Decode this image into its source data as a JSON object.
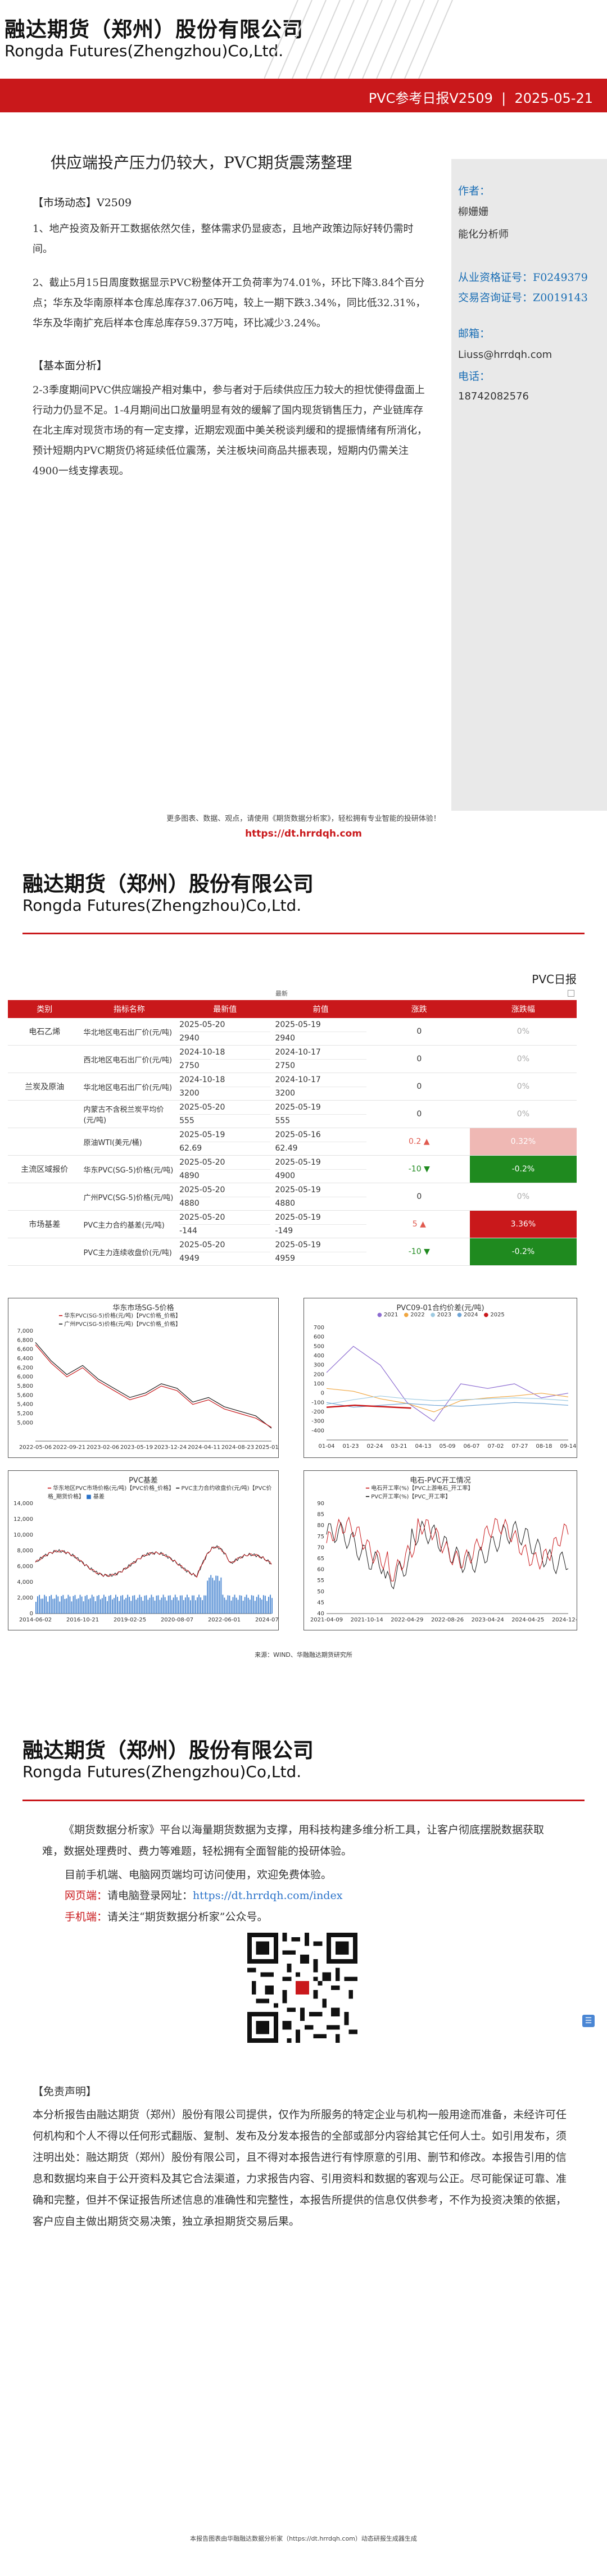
{
  "header": {
    "company_cn": "融达期货（郑州）股份有限公司",
    "company_en": "Rongda Futures(Zhengzhou)Co,Ltd.",
    "report_name": "PVC参考日报V2509",
    "separator": "|",
    "report_date": "2025-05-21"
  },
  "report": {
    "title": "供应端投产压力仍较大，PVC期货震荡整理",
    "market_section": "【市场动态】V2509",
    "market_items": [
      "1、地产投资及新开工数据依然欠佳，整体需求仍显疲态，且地产政策边际好转仍需时间。",
      "2、截止5月15日周度数据显示PVC粉整体开工负荷率为74.01%，环比下降3.84个百分点；华东及华南原样本仓库总库存37.06万吨，较上一期下跌3.34%，同比低32.31%，华东及华南扩充后样本仓库总库存59.37万吨，环比减少3.24%。"
    ],
    "fundamental_section": "【基本面分析】",
    "fundamental_text": "2-3季度期间PVC供应端投产相对集中，参与者对于后续供应压力较大的担忧使得盘面上行动力仍显不足。1-4月期间出口放量明显有效的缓解了国内现货销售压力，产业链库存在北主库对现货市场的有一定支撑，近期宏观面中美关税谈判缓和的提振情绪有所消化，预计短期内PVC期货仍将延续低位震荡，关注板块间商品共振表现，短期内仍需关注4900一线支撑表现。"
  },
  "sidebar": {
    "author_label": "作者：",
    "author_name": "柳姗姗",
    "author_role": "能化分析师",
    "license_label": "从业资格证号：",
    "license_no": "F0249379",
    "consult_label": "交易咨询证号：",
    "consult_no": "Z0019143",
    "email_label": "邮箱：",
    "email": "Liuss@hrrdqh.com",
    "phone_label": "电话：",
    "phone": "18742082576"
  },
  "footer": {
    "note": "更多图表、数据、观点，请使用《期货数据分析家》，轻松拥有专业智能的投研体验！",
    "link": "https://dt.hrrdqh.com"
  },
  "page2": {
    "badge": "PVC日报",
    "table_caption": "最新",
    "columns": [
      "类别",
      "指标名称",
      "最新值",
      "前值",
      "涨跌",
      "涨跌幅"
    ],
    "rows": [
      {
        "category": "电石乙烯",
        "name": "华北地区电石出厂价(元/吨)",
        "latest_date": "2025-05-20",
        "latest": "2940",
        "prev_date": "2025-05-19",
        "prev": "2940",
        "change": "0",
        "pct": "0%"
      },
      {
        "category": "",
        "name": "西北地区电石出厂价(元/吨)",
        "latest_date": "2024-10-18",
        "latest": "2750",
        "prev_date": "2024-10-17",
        "prev": "2750",
        "change": "0",
        "pct": "0%"
      },
      {
        "category": "兰炭及原油",
        "name": "华北地区电石出厂价(元/吨)",
        "latest_date": "2024-10-18",
        "latest": "3200",
        "prev_date": "2024-10-17",
        "prev": "3200",
        "change": "0",
        "pct": "0%"
      },
      {
        "category": "",
        "name": "内蒙古不含税兰炭平均价(元/吨)",
        "latest_date": "2025-05-20",
        "latest": "555",
        "prev_date": "2025-05-19",
        "prev": "555",
        "change": "0",
        "pct": "0%"
      },
      {
        "category": "",
        "name": "原油WTI(美元/桶)",
        "latest_date": "2025-05-19",
        "latest": "62.69",
        "prev_date": "2025-05-16",
        "prev": "62.49",
        "change": "0.2",
        "pct": "0.32%"
      },
      {
        "category": "主流区域报价",
        "name": "华东PVC(SG-5)价格(元/吨)",
        "latest_date": "2025-05-20",
        "latest": "4890",
        "prev_date": "2025-05-19",
        "prev": "4900",
        "change": "-10",
        "pct": "-0.2%"
      },
      {
        "category": "",
        "name": "广州PVC(SG-5)价格(元/吨)",
        "latest_date": "2025-05-20",
        "latest": "4880",
        "prev_date": "2025-05-19",
        "prev": "4880",
        "change": "0",
        "pct": "0%"
      },
      {
        "category": "市场基差",
        "name": "PVC主力合约基差(元/吨)",
        "latest_date": "2025-05-20",
        "latest": "-144",
        "prev_date": "2025-05-19",
        "prev": "-149",
        "change": "5",
        "pct": "3.36%"
      },
      {
        "category": "",
        "name": "PVC主力连续收盘价(元/吨)",
        "latest_date": "2025-05-20",
        "latest": "4949",
        "prev_date": "2025-05-19",
        "prev": "4959",
        "change": "-10",
        "pct": "-0.2%"
      }
    ],
    "source": "来源：WIND、华融融达期货研究所"
  },
  "colors": {
    "brand_red": "#c9181b",
    "up_red": "#e05a4f",
    "down_green": "#1f8a1f",
    "link_blue": "#2a72c9"
  },
  "chart_data": [
    {
      "type": "line",
      "title": "华东市场SG-5价格",
      "series": [
        {
          "name": "华东PVC(SG-5)价格(元/吨)【PVC价格_价格】",
          "values": [
            6700,
            6300,
            6000,
            6200,
            5900,
            5700,
            5500,
            5600,
            5800,
            5700,
            5400,
            5500,
            5300,
            5200,
            5100,
            4900
          ]
        },
        {
          "name": "广州PVC(SG-5)价格(元/吨)【PVC价格_价格】",
          "values": [
            6750,
            6350,
            6050,
            6250,
            5950,
            5750,
            5550,
            5650,
            5850,
            5750,
            5450,
            5550,
            5350,
            5250,
            5150,
            4880
          ]
        }
      ],
      "x_ticks": [
        "2022-05-06",
        "2022-09-21",
        "2023-02-06",
        "2023-05-19",
        "2023-12-24",
        "2024-04-11",
        "2024-08-23",
        "2025-01-07"
      ],
      "ylim": [
        4600,
        7000
      ],
      "y_ticks": [
        "5,000",
        "5,200",
        "5,400",
        "5,600",
        "5,800",
        "6,000",
        "6,200",
        "6,400",
        "6,600",
        "6,800",
        "7,000"
      ]
    },
    {
      "type": "line",
      "title": "PVC09-01合约价差(元/吨)",
      "series": [
        {
          "name": "2021",
          "values": [
            220,
            500,
            300,
            -100,
            -300,
            100,
            50,
            100,
            -50,
            0
          ]
        },
        {
          "name": "2022",
          "values": [
            50,
            20,
            -60,
            -110,
            -200,
            -80,
            -50,
            -30,
            0,
            -40
          ]
        },
        {
          "name": "2023",
          "values": [
            -120,
            -70,
            -30,
            -60,
            -80,
            -70,
            -60,
            -50,
            -60,
            -80
          ]
        },
        {
          "name": "2024",
          "values": [
            -100,
            -150,
            -130,
            -110,
            -130,
            -140,
            -120,
            -100,
            -110,
            -130
          ]
        },
        {
          "name": "2025",
          "values": [
            -150,
            -130,
            -145,
            -160
          ]
        }
      ],
      "x_ticks": [
        "01-04",
        "01-23",
        "02-24",
        "03-21",
        "04-13",
        "05-09",
        "06-07",
        "07-02",
        "07-27",
        "08-18",
        "09-14"
      ],
      "ylim": [
        -500,
        700
      ],
      "y_ticks": [
        "-400",
        "-300",
        "-200",
        "-100",
        "0",
        "100",
        "200",
        "300",
        "400",
        "500",
        "600",
        "700"
      ]
    },
    {
      "type": "line",
      "title": "PVC基差",
      "series": [
        {
          "name": "华东地区PVC市场价格(元/吨)【PVC价格_价格】"
        },
        {
          "name": "PVC主力合约收盘价(元/吨)【PVC价格_期货价格】"
        },
        {
          "name": "基差"
        }
      ],
      "x_ticks": [
        "2014-06-02",
        "2016-10-21",
        "2019-02-25",
        "2020-08-07",
        "2022-06-01",
        "2024-07-22"
      ],
      "ylim": [
        0,
        14000
      ],
      "y_ticks": [
        "0",
        "2,000",
        "4,000",
        "6,000",
        "8,000",
        "10,000",
        "12,000",
        "14,000"
      ]
    },
    {
      "type": "line",
      "title": "电石-PVC开工情况",
      "series": [
        {
          "name": "电石开工率(%)【PVC上游电石_开工率】"
        },
        {
          "name": "PVC开工率(%)【PVC_开工率】"
        }
      ],
      "x_ticks": [
        "2021-04-09",
        "2021-10-14",
        "2022-04-29",
        "2022-08-26",
        "2023-04-24",
        "2024-04-25",
        "2024-12-04"
      ],
      "ylim": [
        40,
        90
      ],
      "y_ticks": [
        "40",
        "45",
        "50",
        "55",
        "60",
        "65",
        "70",
        "75",
        "80",
        "85",
        "90"
      ]
    }
  ],
  "page3": {
    "company_cn": "融达期货（郑州）股份有限公司",
    "company_en": "Rongda Futures(Zhengzhou)Co,Ltd.",
    "intro": "《期货数据分析家》平台以海量期货数据为支撑，用科技构建多维分析工具，让客户彻底摆脱数据获取难，数据处理费时、费力等难题，轻松拥有全面智能的投研体验。",
    "line2": "目前手机端、电脑网页端均可访问使用，欢迎免费体验。",
    "web_label": "网页端：",
    "web_text": "请电脑登录网址：",
    "web_url": "https://dt.hrrdqh.com/index",
    "mobile_label": "手机端：",
    "mobile_text": "请关注“期货数据分析家”公众号。",
    "disclaimer_title": "【免责声明】",
    "disclaimer": "本分析报告由融达期货（郑州）股份有限公司提供，仅作为所服务的特定企业与机构一般用途而准备，未经许可任何机构和个人不得以任何形式翻版、复制、发布及分发本报告的全部或部分内容给其它任何人士。如引用发布，须注明出处：融达期货（郑州）股份有限公司，且不得对本报告进行有悖原意的引用、删节和修改。本报告引用的信息和数据均来自于公开资料及其它合法渠道，力求报告内容、引用资料和数据的客观与公正。尽可能保证可靠、准确和完整，但并不保证报告所述信息的准确性和完整性，本报告所提供的信息仅供参考，不作为投资决策的依据，客户应自主做出期货交易决策，独立承担期货交易后果。",
    "bottom_note": "本报告图表由华融融达数据分析家（https://dt.hrrdqh.com）动态研报生成器生成"
  }
}
